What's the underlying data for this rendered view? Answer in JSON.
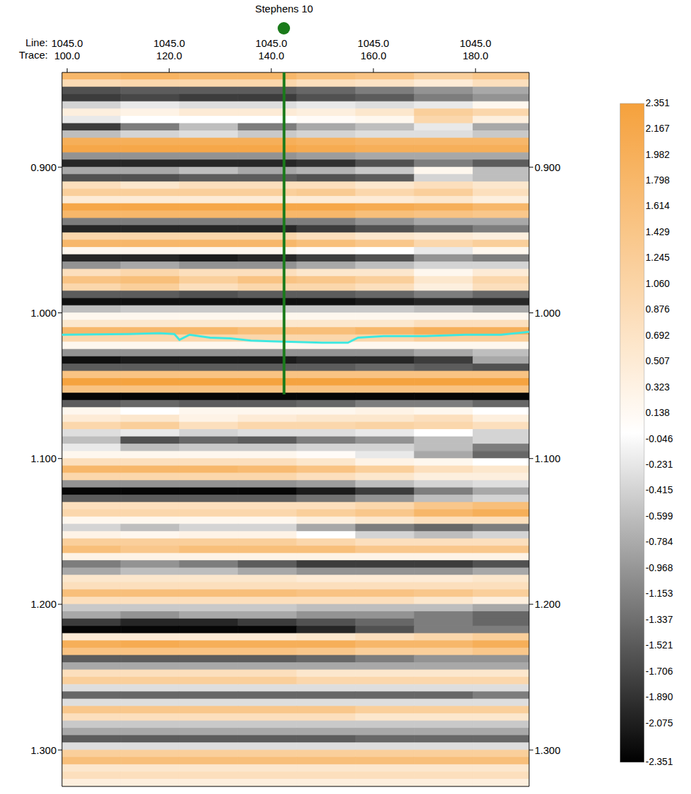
{
  "chart_data": {
    "type": "heatmap",
    "xlim": [
      99,
      190.5
    ],
    "xticks": [
      {
        "value": 100,
        "label": "100.0"
      },
      {
        "value": 120,
        "label": "120.0"
      },
      {
        "value": 140,
        "label": "140.0"
      },
      {
        "value": 160,
        "label": "160.0"
      },
      {
        "value": 180,
        "label": "180.0"
      }
    ],
    "x_line_labels": [
      "1045.0",
      "1045.0",
      "1045.0",
      "1045.0",
      "1045.0"
    ],
    "x_tick_prefixes": [
      "Line:",
      "Trace:"
    ],
    "ylim": [
      0.835,
      1.325
    ],
    "yticks": [
      {
        "value": 0.9,
        "label": "0.900"
      },
      {
        "value": 1.0,
        "label": "1.000"
      },
      {
        "value": 1.1,
        "label": "1.100"
      },
      {
        "value": 1.2,
        "label": "1.200"
      },
      {
        "value": 1.3,
        "label": "1.300"
      }
    ],
    "trace_bins": [
      99,
      110.5,
      122,
      133.5,
      145,
      156.5,
      168,
      179.5,
      190.5
    ],
    "amplitude_rows": [
      [
        0.8375,
        1.8,
        1.9,
        1.8,
        1.8,
        1.6,
        1.5,
        1.2,
        1.4
      ],
      [
        0.8425,
        0.9,
        1.0,
        1.0,
        1.0,
        0.8,
        0.7,
        0.5,
        0.8
      ],
      [
        0.8475,
        -1.6,
        -1.5,
        -1.5,
        -1.5,
        -1.4,
        -1.2,
        -1.0,
        -0.8
      ],
      [
        0.8525,
        -1.8,
        -1.7,
        -1.8,
        -1.8,
        -1.6,
        -1.5,
        -1.2,
        -1.0
      ],
      [
        0.8575,
        -0.4,
        -0.2,
        -0.3,
        -0.3,
        -0.2,
        -0.3,
        -0.2,
        0.2
      ],
      [
        0.8625,
        0.4,
        0.3,
        0.5,
        0.5,
        0.4,
        0.6,
        1.2,
        1.0
      ],
      [
        0.8675,
        -0.2,
        0.0,
        0.0,
        0.0,
        0.1,
        0.2,
        1.0,
        0.4
      ],
      [
        0.8725,
        -1.8,
        -1.2,
        -0.6,
        -1.2,
        -0.8,
        -0.6,
        -0.2,
        -0.8
      ],
      [
        0.8775,
        -0.6,
        -0.4,
        -0.3,
        -0.5,
        -0.4,
        -0.3,
        -0.3,
        -0.5
      ],
      [
        0.8825,
        2.0,
        2.0,
        2.0,
        2.0,
        1.9,
        1.8,
        1.8,
        1.8
      ],
      [
        0.8875,
        2.2,
        2.2,
        2.2,
        2.2,
        2.1,
        2.0,
        2.0,
        2.0
      ],
      [
        0.8925,
        -1.0,
        -1.0,
        -1.0,
        -1.0,
        -0.9,
        -0.8,
        -0.8,
        -0.8
      ],
      [
        0.8975,
        -2.0,
        -2.0,
        -2.0,
        -2.0,
        -1.9,
        -1.6,
        -1.2,
        -1.5
      ],
      [
        0.9025,
        -0.8,
        -0.8,
        -0.6,
        -0.8,
        -0.7,
        -0.5,
        0.2,
        -0.6
      ],
      [
        0.9075,
        -1.6,
        -1.6,
        -1.5,
        -1.5,
        -1.6,
        -1.5,
        -0.4,
        -0.6
      ],
      [
        0.9125,
        0.8,
        0.6,
        0.8,
        0.8,
        0.8,
        0.6,
        0.8,
        0.6
      ],
      [
        0.9175,
        1.2,
        1.2,
        1.2,
        1.2,
        1.3,
        1.0,
        1.2,
        0.8
      ],
      [
        0.9225,
        0.5,
        0.5,
        0.5,
        0.5,
        0.5,
        0.5,
        0.6,
        0.4
      ],
      [
        0.9275,
        2.2,
        2.2,
        2.2,
        2.2,
        2.2,
        2.1,
        2.0,
        1.8
      ],
      [
        0.9325,
        1.8,
        1.8,
        1.8,
        1.8,
        1.8,
        1.6,
        1.5,
        1.4
      ],
      [
        0.9375,
        -1.2,
        -1.2,
        -1.2,
        -1.2,
        -1.2,
        -1.0,
        -0.8,
        -0.8
      ],
      [
        0.9425,
        -2.0,
        -2.0,
        -2.0,
        -2.0,
        -1.8,
        -1.6,
        -1.4,
        -1.2
      ],
      [
        0.9475,
        1.0,
        1.0,
        1.0,
        1.0,
        0.8,
        0.6,
        0.5,
        0.4
      ],
      [
        0.9525,
        1.8,
        1.8,
        1.8,
        1.8,
        1.6,
        1.4,
        1.0,
        1.2
      ],
      [
        0.9575,
        0.2,
        0.2,
        0.2,
        0.2,
        0.1,
        0.0,
        -0.2,
        0.2
      ],
      [
        0.9625,
        -2.0,
        -2.0,
        -2.1,
        -2.0,
        -1.8,
        -1.6,
        -1.0,
        -1.2
      ],
      [
        0.9675,
        -1.0,
        -0.8,
        -1.0,
        -1.0,
        -0.8,
        -0.6,
        -0.4,
        -0.4
      ],
      [
        0.9725,
        0.8,
        1.0,
        0.8,
        0.8,
        0.6,
        0.6,
        0.2,
        0.5
      ],
      [
        0.9775,
        1.5,
        1.6,
        1.2,
        1.5,
        1.4,
        1.2,
        0.6,
        1.0
      ],
      [
        0.9825,
        1.0,
        1.2,
        0.8,
        1.0,
        1.0,
        0.8,
        0.4,
        0.8
      ],
      [
        0.9875,
        -1.5,
        -1.5,
        -1.6,
        -1.5,
        -1.5,
        -1.4,
        -1.2,
        -1.4
      ],
      [
        0.9925,
        -2.2,
        -2.2,
        -2.2,
        -2.2,
        -2.2,
        -2.1,
        -2.0,
        -2.0
      ],
      [
        0.9975,
        -0.6,
        -0.5,
        -0.5,
        -0.5,
        -0.5,
        -0.5,
        -0.6,
        -0.8
      ],
      [
        1.0025,
        0.2,
        0.2,
        0.2,
        0.2,
        0.2,
        0.2,
        0.2,
        0.2
      ],
      [
        1.0075,
        0.6,
        0.6,
        0.6,
        0.6,
        0.6,
        0.6,
        0.8,
        0.8
      ],
      [
        1.0125,
        1.8,
        1.8,
        1.8,
        1.6,
        1.6,
        1.8,
        2.0,
        2.0
      ],
      [
        1.0175,
        1.0,
        1.0,
        1.0,
        1.0,
        1.0,
        1.0,
        1.2,
        1.2
      ],
      [
        1.0225,
        0.2,
        0.2,
        0.2,
        0.2,
        0.2,
        0.2,
        0.2,
        0.2
      ],
      [
        1.0275,
        -1.0,
        -1.0,
        -1.0,
        -1.0,
        -1.0,
        -1.0,
        -0.8,
        -0.6
      ],
      [
        1.0325,
        -2.2,
        -2.1,
        -2.1,
        -2.1,
        -2.0,
        -2.0,
        -1.8,
        -0.8
      ],
      [
        1.0375,
        -1.5,
        -1.5,
        -1.5,
        -1.5,
        -1.5,
        -1.4,
        -1.5,
        -1.6
      ],
      [
        1.0425,
        1.5,
        1.5,
        1.5,
        1.5,
        1.5,
        1.5,
        1.5,
        1.5
      ],
      [
        1.0475,
        2.3,
        2.3,
        2.3,
        2.3,
        2.3,
        2.3,
        2.3,
        2.3
      ],
      [
        1.0525,
        1.5,
        1.5,
        1.5,
        1.5,
        1.5,
        1.5,
        1.5,
        1.5
      ],
      [
        1.0575,
        -2.3,
        -2.3,
        -2.3,
        -2.3,
        -2.3,
        -2.3,
        -2.3,
        -2.3
      ],
      [
        1.0625,
        -1.5,
        -1.4,
        -1.5,
        -1.5,
        -1.4,
        -1.2,
        -1.2,
        -1.4
      ],
      [
        1.0675,
        0.2,
        0.0,
        0.2,
        0.2,
        0.2,
        0.3,
        0.2,
        0.0
      ],
      [
        1.0725,
        0.5,
        0.6,
        0.3,
        0.5,
        0.6,
        0.6,
        0.8,
        0.4
      ],
      [
        1.0775,
        1.0,
        1.2,
        0.8,
        1.0,
        1.0,
        1.1,
        1.0,
        0.8
      ],
      [
        1.0825,
        -0.3,
        -0.2,
        -0.4,
        -0.3,
        -0.3,
        -0.2,
        0.0,
        -0.4
      ],
      [
        1.0875,
        -0.6,
        -1.6,
        -1.4,
        -1.5,
        -1.2,
        -1.0,
        -0.6,
        -0.4
      ],
      [
        1.0925,
        -0.2,
        -0.6,
        -0.5,
        -0.5,
        -0.4,
        -0.4,
        -0.6,
        -1.2
      ],
      [
        1.0975,
        0.2,
        0.2,
        0.2,
        0.2,
        0.1,
        -0.2,
        -0.8,
        -1.4
      ],
      [
        1.1025,
        0.8,
        0.8,
        0.8,
        0.8,
        0.6,
        0.3,
        0.2,
        0.0
      ],
      [
        1.1075,
        1.8,
        1.8,
        1.8,
        1.7,
        1.5,
        1.2,
        0.8,
        0.6
      ],
      [
        1.1125,
        1.0,
        1.0,
        1.0,
        1.0,
        0.8,
        0.6,
        0.4,
        0.4
      ],
      [
        1.1175,
        -1.0,
        -1.0,
        -1.0,
        -1.0,
        -0.9,
        -0.6,
        -0.4,
        -0.3
      ],
      [
        1.1225,
        -2.3,
        -2.3,
        -2.3,
        -2.3,
        -2.1,
        -1.8,
        -1.2,
        -0.8
      ],
      [
        1.1275,
        -1.5,
        -1.5,
        -1.5,
        -1.5,
        -1.3,
        -1.0,
        -0.6,
        -0.4
      ],
      [
        1.1325,
        0.8,
        0.8,
        0.8,
        0.8,
        0.8,
        1.0,
        1.4,
        1.6
      ],
      [
        1.1375,
        1.0,
        1.0,
        1.0,
        1.0,
        1.2,
        1.4,
        1.8,
        2.0
      ],
      [
        1.1425,
        0.2,
        0.2,
        0.2,
        0.2,
        0.4,
        0.6,
        0.8,
        0.8
      ],
      [
        1.1475,
        -0.4,
        -0.6,
        -0.4,
        -0.4,
        -0.8,
        -1.2,
        -1.4,
        -1.2
      ],
      [
        1.1525,
        0.3,
        0.2,
        0.3,
        0.3,
        0.0,
        -0.4,
        -0.6,
        -0.4
      ],
      [
        1.1575,
        1.2,
        1.2,
        1.2,
        1.2,
        1.0,
        0.8,
        0.8,
        0.8
      ],
      [
        1.1625,
        1.6,
        1.4,
        1.6,
        1.6,
        1.6,
        1.4,
        1.4,
        1.4
      ],
      [
        1.1675,
        0.3,
        0.3,
        0.3,
        0.3,
        0.3,
        0.3,
        0.3,
        0.3
      ],
      [
        1.1725,
        -1.2,
        -1.0,
        -1.2,
        -1.5,
        -1.8,
        -1.8,
        -1.8,
        -1.6
      ],
      [
        1.1775,
        -0.8,
        -0.6,
        -0.6,
        -0.8,
        -1.0,
        -1.0,
        -1.0,
        -0.8
      ],
      [
        1.1825,
        0.6,
        0.6,
        0.6,
        0.6,
        0.5,
        0.5,
        0.5,
        0.6
      ],
      [
        1.1875,
        0.8,
        0.8,
        0.8,
        0.8,
        0.8,
        0.8,
        0.8,
        0.8
      ],
      [
        1.1925,
        1.6,
        1.6,
        1.6,
        1.6,
        1.5,
        1.5,
        1.4,
        1.2
      ],
      [
        1.1975,
        0.8,
        0.8,
        0.8,
        0.8,
        0.8,
        0.8,
        0.6,
        0.4
      ],
      [
        1.2025,
        -0.5,
        -0.5,
        -0.5,
        -0.5,
        -0.6,
        -0.6,
        -0.6,
        -0.8
      ],
      [
        1.2075,
        -0.8,
        -1.0,
        -0.8,
        -0.8,
        -1.0,
        -1.0,
        -1.2,
        -1.4
      ],
      [
        1.2125,
        -1.8,
        -2.0,
        -2.0,
        -1.8,
        -1.6,
        -1.4,
        -1.2,
        -1.4
      ],
      [
        1.2175,
        -2.3,
        -2.3,
        -2.3,
        -2.3,
        -2.0,
        -1.6,
        -1.2,
        -1.2
      ],
      [
        1.2225,
        0.5,
        0.5,
        0.5,
        0.5,
        0.6,
        0.8,
        1.0,
        1.2
      ],
      [
        1.2275,
        2.0,
        2.1,
        2.0,
        2.0,
        2.0,
        1.8,
        1.8,
        2.0
      ],
      [
        1.2325,
        1.5,
        1.5,
        1.5,
        1.5,
        1.4,
        1.2,
        1.2,
        1.4
      ],
      [
        1.2375,
        -1.5,
        -1.5,
        -1.5,
        -1.5,
        -1.4,
        -1.2,
        -1.0,
        -1.0
      ],
      [
        1.2425,
        -0.8,
        -0.8,
        -0.8,
        -0.8,
        -0.8,
        -0.8,
        -0.8,
        -0.8
      ],
      [
        1.2475,
        0.8,
        0.8,
        0.8,
        0.8,
        0.6,
        0.6,
        0.6,
        0.6
      ],
      [
        1.2525,
        1.2,
        1.2,
        1.2,
        1.2,
        1.0,
        1.0,
        1.0,
        1.0
      ],
      [
        1.2575,
        -0.3,
        -0.3,
        -0.3,
        -0.3,
        -0.3,
        -0.3,
        -0.3,
        -0.3
      ],
      [
        1.2625,
        -1.4,
        -1.4,
        -1.4,
        -1.4,
        -1.4,
        -1.4,
        -1.4,
        -1.2
      ],
      [
        1.2675,
        -0.3,
        -0.3,
        -0.3,
        -0.3,
        -0.3,
        -0.3,
        -0.3,
        -0.3
      ],
      [
        1.2725,
        1.4,
        1.4,
        1.4,
        1.4,
        1.4,
        1.2,
        1.2,
        1.2
      ],
      [
        1.2775,
        0.8,
        0.8,
        0.8,
        0.8,
        0.8,
        0.6,
        0.6,
        0.6
      ],
      [
        1.2825,
        -0.5,
        -0.5,
        -0.5,
        -0.5,
        -0.5,
        -0.5,
        -0.5,
        -0.5
      ],
      [
        1.2875,
        -0.8,
        -0.8,
        -0.8,
        -0.8,
        -0.8,
        -0.8,
        -0.8,
        -0.8
      ],
      [
        1.2925,
        -1.5,
        -1.5,
        -1.5,
        -1.5,
        -1.5,
        -1.4,
        -1.4,
        -1.4
      ],
      [
        1.2975,
        -0.3,
        -0.3,
        -0.3,
        -0.3,
        -0.3,
        -0.3,
        -0.3,
        -0.3
      ],
      [
        1.3025,
        1.2,
        1.2,
        1.2,
        1.2,
        1.2,
        1.2,
        1.2,
        1.2
      ],
      [
        1.3075,
        1.6,
        1.6,
        1.6,
        1.6,
        1.6,
        1.6,
        1.6,
        1.6
      ],
      [
        1.3125,
        0.6,
        0.6,
        0.6,
        0.6,
        0.6,
        0.6,
        0.6,
        0.6
      ],
      [
        1.3175,
        0.8,
        0.8,
        0.8,
        0.8,
        0.8,
        0.8,
        0.8,
        0.8
      ],
      [
        1.3225,
        0.4,
        0.4,
        0.4,
        0.4,
        0.4,
        0.4,
        0.4,
        0.4
      ]
    ],
    "colorbar": {
      "range": [
        -2.351,
        2.351
      ],
      "colors": [
        "#000000",
        "#ffffff",
        "#f5a13c"
      ],
      "ticks": [
        2.351,
        2.167,
        1.982,
        1.798,
        1.614,
        1.429,
        1.245,
        {
          "value": 1.06,
          "label": "1.060"
        },
        0.876,
        0.692,
        0.507,
        0.323,
        0.138,
        -0.046,
        -0.231,
        -0.415,
        -0.599,
        -0.784,
        -0.968,
        -1.153,
        -1.337,
        -1.521,
        -1.706,
        {
          "value": -1.89,
          "label": "-1.890"
        },
        -2.075,
        -2.351
      ]
    },
    "horizon": {
      "color": "#3ee8e0",
      "x": [
        99,
        105,
        112,
        118,
        121,
        122,
        124,
        128,
        132,
        136,
        140,
        145,
        150,
        155,
        157,
        162,
        170,
        178,
        185,
        190.5
      ],
      "y": [
        1.015,
        1.0148,
        1.0145,
        1.014,
        1.0145,
        1.0185,
        1.015,
        1.017,
        1.0175,
        1.019,
        1.0195,
        1.02,
        1.0205,
        1.0205,
        1.017,
        1.016,
        1.016,
        1.015,
        1.015,
        1.013
      ]
    },
    "well": {
      "name": "Stephens 10",
      "trace": 142.5,
      "time_range": [
        0.835,
        1.056
      ],
      "color": "#1a7a1a"
    }
  }
}
